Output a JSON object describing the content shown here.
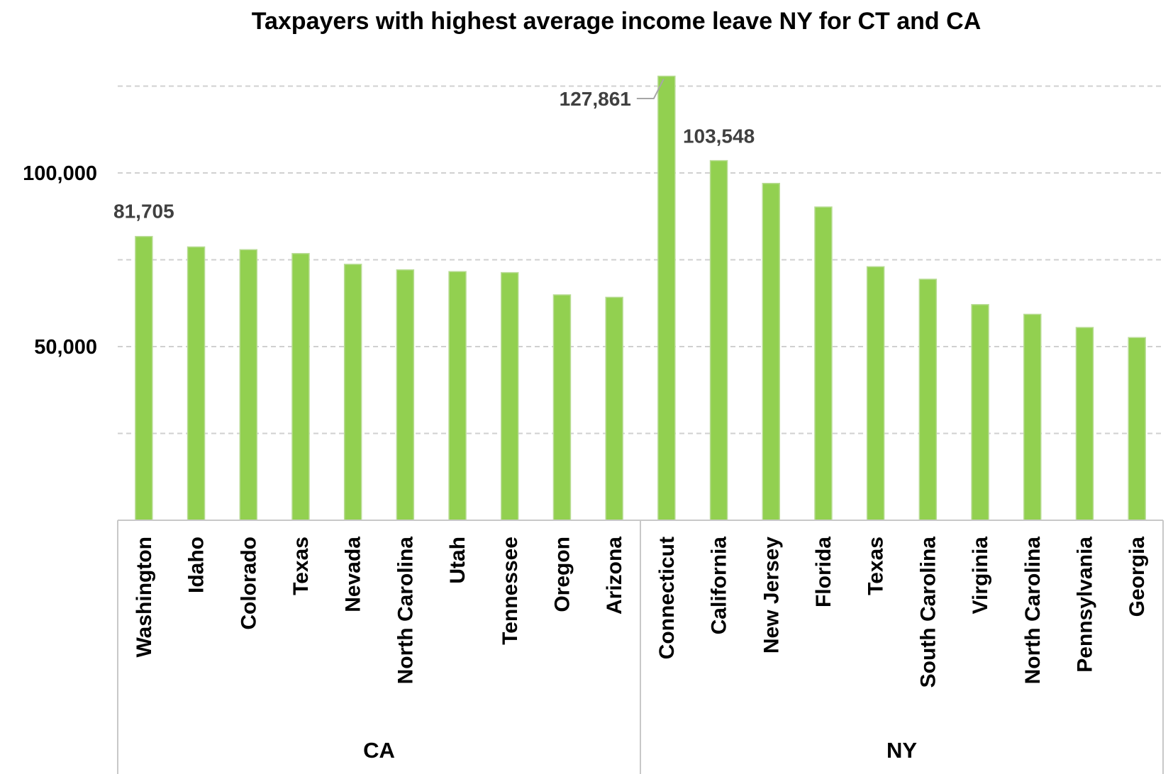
{
  "chart_data": {
    "type": "bar",
    "title": "Taxpayers with highest average income leave NY for CT and CA",
    "xlabel": "",
    "ylabel": "",
    "ylim": [
      0,
      127861
    ],
    "y_ticks": [
      50000,
      100000
    ],
    "y_tick_labels": [
      "50,000",
      "100,000"
    ],
    "gridlines": [
      25000,
      50000,
      75000,
      100000,
      125000
    ],
    "grid": true,
    "bar_color": "#92d050",
    "groups": [
      {
        "name": "CA",
        "categories": [
          "Washington",
          "Idaho",
          "Colorado",
          "Texas",
          "Nevada",
          "North Carolina",
          "Utah",
          "Tennessee",
          "Oregon",
          "Arizona"
        ],
        "values": [
          81705,
          78700,
          77900,
          76800,
          73700,
          72100,
          71600,
          71300,
          64900,
          64200
        ]
      },
      {
        "name": "NY",
        "categories": [
          "Connecticut",
          "California",
          "New Jersey",
          "Florida",
          "Texas",
          "South Carolina",
          "Virginia",
          "North Carolina",
          "Pennsylvania",
          "Georgia"
        ],
        "values": [
          127861,
          103548,
          97000,
          90200,
          73000,
          69400,
          62100,
          59300,
          55500,
          52600
        ]
      }
    ],
    "data_labels": [
      {
        "category": "Washington",
        "group": "CA",
        "text": "81,705"
      },
      {
        "category": "Connecticut",
        "group": "NY",
        "text": "127,861"
      },
      {
        "category": "California",
        "group": "NY",
        "text": "103,548"
      }
    ]
  }
}
